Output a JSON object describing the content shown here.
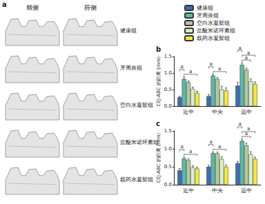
{
  "panel_a": {
    "label": "a",
    "columns": [
      "颊侧",
      "腭侧"
    ],
    "rows": [
      "健康组",
      "牙周炎组",
      "空白水凝胶组",
      "盐酸米诺环素组",
      "载药水凝胶组"
    ]
  },
  "chart_data": [
    {
      "type": "bar",
      "label": "b",
      "ylabel": "CEJ-ABC 的距离 (mm)",
      "legend": "top",
      "categories": [
        "近中",
        "中央",
        "远中"
      ],
      "ylim": [
        0,
        1.5
      ],
      "yticks": [
        {
          "value": 0,
          "label": "0.0"
        },
        {
          "value": 0.5,
          "label": "0.5"
        },
        {
          "value": 1,
          "label": "1.0"
        },
        {
          "value": 1.5,
          "label": "1.5"
        }
      ],
      "series": [
        {
          "name": "健康组",
          "color": "#3b6db3",
          "values": [
            0.27,
            0.3,
            0.62
          ],
          "errors": [
            0.03,
            0.05,
            0.1
          ]
        },
        {
          "name": "牙周炎组",
          "color": "#5db8a6",
          "values": [
            0.82,
            0.92,
            1.25
          ],
          "errors": [
            0.06,
            0.04,
            0.06
          ]
        },
        {
          "name": "空白水凝胶组",
          "color": "#b5c79e",
          "values": [
            0.72,
            0.82,
            1.1
          ],
          "errors": [
            0.04,
            0.05,
            0.05
          ]
        },
        {
          "name": "盐酸米诺环素组",
          "color": "#d8efc6",
          "values": [
            0.52,
            0.5,
            0.75
          ],
          "errors": [
            0.05,
            0.1,
            0.08
          ]
        },
        {
          "name": "载药水凝胶组",
          "color": "#f3e64a",
          "values": [
            0.4,
            0.47,
            0.67
          ],
          "errors": [
            0.05,
            0.08,
            0.06
          ]
        }
      ],
      "significance": [
        {
          "category": "近中",
          "from": "牙周炎组",
          "to": "载药水凝胶组",
          "label": "a"
        },
        {
          "category": "近中",
          "from": "健康组",
          "to": "牙周炎组",
          "label": "a"
        },
        {
          "category": "中央",
          "from": "牙周炎组",
          "to": "载药水凝胶组",
          "label": "a"
        },
        {
          "category": "中央",
          "from": "健康组",
          "to": "牙周炎组",
          "label": "a"
        },
        {
          "category": "远中",
          "from": "牙周炎组",
          "to": "盐酸米诺环素组",
          "label": "a"
        },
        {
          "category": "远中",
          "from": "牙周炎组",
          "to": "载药水凝胶组",
          "label": "a"
        },
        {
          "category": "远中",
          "from": "健康组",
          "to": "牙周炎组",
          "label": "a"
        }
      ]
    },
    {
      "type": "bar",
      "label": "c",
      "ylabel": "CEJ-ABC 的距离 (mm)",
      "categories": [
        "近中",
        "中央",
        "远中"
      ],
      "ylim": [
        0,
        1.5
      ],
      "yticks": [
        {
          "value": 0,
          "label": "0.0"
        },
        {
          "value": 0.5,
          "label": "0.5"
        },
        {
          "value": 1,
          "label": "1.0"
        },
        {
          "value": 1.5,
          "label": "1.5"
        }
      ],
      "series": [
        {
          "name": "健康组",
          "color": "#3b6db3",
          "values": [
            0.4,
            0.5,
            0.6
          ],
          "errors": [
            0.05,
            0.04,
            0.05
          ]
        },
        {
          "name": "牙周炎组",
          "color": "#5db8a6",
          "values": [
            0.73,
            0.88,
            1.22
          ],
          "errors": [
            0.04,
            0.03,
            0.05
          ]
        },
        {
          "name": "空白水凝胶组",
          "color": "#b5c79e",
          "values": [
            0.68,
            0.87,
            1.1
          ],
          "errors": [
            0.04,
            0.04,
            0.06
          ]
        },
        {
          "name": "盐酸米诺环素组",
          "color": "#d8efc6",
          "values": [
            0.48,
            0.72,
            0.85
          ],
          "errors": [
            0.05,
            0.06,
            0.07
          ]
        },
        {
          "name": "载药水凝胶组",
          "color": "#f3e64a",
          "values": [
            0.45,
            0.5,
            0.72
          ],
          "errors": [
            0.04,
            0.05,
            0.05
          ]
        }
      ],
      "significance": [
        {
          "category": "近中",
          "from": "牙周炎组",
          "to": "载药水凝胶组",
          "label": "a"
        },
        {
          "category": "近中",
          "from": "健康组",
          "to": "牙周炎组",
          "label": "a"
        },
        {
          "category": "中央",
          "from": "牙周炎组",
          "to": "载药水凝胶组",
          "label": "a"
        },
        {
          "category": "中央",
          "from": "健康组",
          "to": "牙周炎组",
          "label": "a"
        },
        {
          "category": "远中",
          "from": "牙周炎组",
          "to": "盐酸米诺环素组",
          "label": "a"
        },
        {
          "category": "远中",
          "from": "牙周炎组",
          "to": "载药水凝胶组",
          "label": "a"
        },
        {
          "category": "远中",
          "from": "健康组",
          "to": "牙周炎组",
          "label": "a"
        }
      ]
    }
  ]
}
